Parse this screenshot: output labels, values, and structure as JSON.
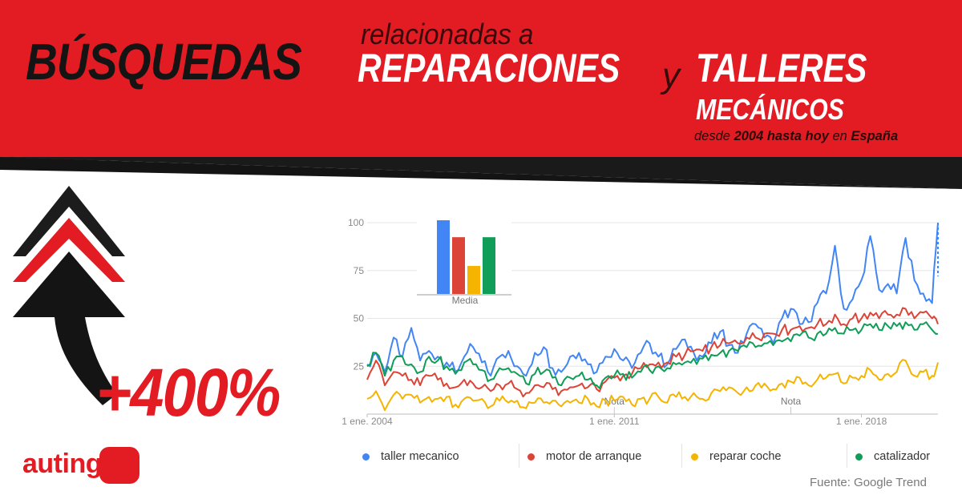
{
  "title": {
    "main": "BÚSQUEDAS",
    "relacionadas": "relacionadas a",
    "reparaciones": "REPARACIONES",
    "y": "y",
    "talleres": "TALLERES",
    "mecanicos": "MECÁNICOS",
    "subtitle_desde": "desde",
    "subtitle_years": "2004 hasta hoy",
    "subtitle_en": "en",
    "subtitle_country": "España"
  },
  "headline_percent": "+400%",
  "brand": {
    "logo_text": "autingo",
    "primary_color": "#e31b23"
  },
  "source": "Fuente: Google Trend",
  "chart_data": {
    "type": "line",
    "x_range": [
      "2004-01",
      "2020-03"
    ],
    "x_tick_labels": [
      "1 ene. 2004",
      "1 ene. 2011",
      "1 ene. 2018"
    ],
    "y_ticks": [
      25,
      50,
      75,
      100
    ],
    "ylim": [
      0,
      100
    ],
    "grid": true,
    "annotations": [
      {
        "label": "Nota",
        "x": "2011-01"
      },
      {
        "label": "Nota",
        "x": "2016-01"
      }
    ],
    "legend_position": "bottom",
    "series": [
      {
        "name": "taller mecanico",
        "color": "#4285f4",
        "points": [
          [
            "2004-01",
            26
          ],
          [
            "2004-04",
            32
          ],
          [
            "2004-07",
            22
          ],
          [
            "2004-10",
            40
          ],
          [
            "2005-01",
            30
          ],
          [
            "2005-04",
            45
          ],
          [
            "2005-07",
            28
          ],
          [
            "2005-10",
            33
          ],
          [
            "2006-01",
            30
          ],
          [
            "2006-04",
            27
          ],
          [
            "2006-07",
            22
          ],
          [
            "2006-10",
            30
          ],
          [
            "2007-01",
            35
          ],
          [
            "2007-04",
            27
          ],
          [
            "2007-07",
            20
          ],
          [
            "2007-10",
            30
          ],
          [
            "2008-01",
            33
          ],
          [
            "2008-04",
            25
          ],
          [
            "2008-07",
            20
          ],
          [
            "2008-10",
            32
          ],
          [
            "2009-01",
            35
          ],
          [
            "2009-04",
            24
          ],
          [
            "2009-07",
            22
          ],
          [
            "2009-10",
            30
          ],
          [
            "2010-01",
            32
          ],
          [
            "2010-04",
            26
          ],
          [
            "2010-07",
            22
          ],
          [
            "2010-10",
            30
          ],
          [
            "2011-01",
            34
          ],
          [
            "2011-04",
            28
          ],
          [
            "2011-07",
            24
          ],
          [
            "2011-10",
            32
          ],
          [
            "2012-01",
            37
          ],
          [
            "2012-04",
            30
          ],
          [
            "2012-07",
            26
          ],
          [
            "2012-10",
            34
          ],
          [
            "2013-01",
            39
          ],
          [
            "2013-04",
            32
          ],
          [
            "2013-07",
            30
          ],
          [
            "2013-10",
            37
          ],
          [
            "2014-01",
            43
          ],
          [
            "2014-04",
            36
          ],
          [
            "2014-07",
            32
          ],
          [
            "2014-10",
            42
          ],
          [
            "2015-01",
            47
          ],
          [
            "2015-04",
            40
          ],
          [
            "2015-07",
            37
          ],
          [
            "2015-10",
            50
          ],
          [
            "2016-01",
            55
          ],
          [
            "2016-04",
            47
          ],
          [
            "2016-07",
            48
          ],
          [
            "2016-10",
            58
          ],
          [
            "2017-01",
            63
          ],
          [
            "2017-04",
            88
          ],
          [
            "2017-07",
            55
          ],
          [
            "2017-10",
            60
          ],
          [
            "2018-01",
            70
          ],
          [
            "2018-04",
            93
          ],
          [
            "2018-07",
            65
          ],
          [
            "2018-10",
            68
          ],
          [
            "2019-01",
            63
          ],
          [
            "2019-04",
            92
          ],
          [
            "2019-07",
            70
          ],
          [
            "2019-10",
            63
          ],
          [
            "2020-01",
            58
          ],
          [
            "2020-03",
            100
          ]
        ]
      },
      {
        "name": "motor de arranque",
        "color": "#db4437",
        "points": [
          [
            "2004-01",
            18
          ],
          [
            "2004-04",
            28
          ],
          [
            "2004-07",
            15
          ],
          [
            "2004-10",
            22
          ],
          [
            "2005-01",
            20
          ],
          [
            "2005-04",
            18
          ],
          [
            "2005-07",
            15
          ],
          [
            "2005-10",
            20
          ],
          [
            "2006-01",
            18
          ],
          [
            "2006-04",
            16
          ],
          [
            "2006-07",
            14
          ],
          [
            "2006-10",
            18
          ],
          [
            "2007-01",
            16
          ],
          [
            "2007-04",
            14
          ],
          [
            "2007-07",
            12
          ],
          [
            "2007-10",
            15
          ],
          [
            "2008-01",
            16
          ],
          [
            "2008-04",
            13
          ],
          [
            "2008-07",
            11
          ],
          [
            "2008-10",
            15
          ],
          [
            "2009-01",
            14
          ],
          [
            "2009-04",
            13
          ],
          [
            "2009-07",
            12
          ],
          [
            "2009-10",
            14
          ],
          [
            "2010-01",
            15
          ],
          [
            "2010-04",
            14
          ],
          [
            "2010-07",
            13
          ],
          [
            "2010-10",
            17
          ],
          [
            "2011-01",
            19
          ],
          [
            "2011-04",
            20
          ],
          [
            "2011-07",
            21
          ],
          [
            "2011-10",
            24
          ],
          [
            "2012-01",
            26
          ],
          [
            "2012-04",
            27
          ],
          [
            "2012-07",
            27
          ],
          [
            "2012-10",
            30
          ],
          [
            "2013-01",
            31
          ],
          [
            "2013-04",
            33
          ],
          [
            "2013-07",
            33
          ],
          [
            "2013-10",
            35
          ],
          [
            "2014-01",
            36
          ],
          [
            "2014-04",
            37
          ],
          [
            "2014-07",
            37
          ],
          [
            "2014-10",
            40
          ],
          [
            "2015-01",
            40
          ],
          [
            "2015-04",
            42
          ],
          [
            "2015-07",
            42
          ],
          [
            "2015-10",
            44
          ],
          [
            "2016-01",
            44
          ],
          [
            "2016-04",
            46
          ],
          [
            "2016-07",
            45
          ],
          [
            "2016-10",
            47
          ],
          [
            "2017-01",
            47
          ],
          [
            "2017-04",
            52
          ],
          [
            "2017-07",
            47
          ],
          [
            "2017-10",
            50
          ],
          [
            "2018-01",
            50
          ],
          [
            "2018-04",
            53
          ],
          [
            "2018-07",
            50
          ],
          [
            "2018-10",
            52
          ],
          [
            "2019-01",
            52
          ],
          [
            "2019-04",
            55
          ],
          [
            "2019-07",
            50
          ],
          [
            "2019-10",
            53
          ],
          [
            "2020-01",
            50
          ],
          [
            "2020-03",
            47
          ]
        ]
      },
      {
        "name": "reparar coche",
        "color": "#f4b400",
        "points": [
          [
            "2004-01",
            8
          ],
          [
            "2004-04",
            12
          ],
          [
            "2004-07",
            2
          ],
          [
            "2004-10",
            10
          ],
          [
            "2005-01",
            8
          ],
          [
            "2005-04",
            10
          ],
          [
            "2005-07",
            6
          ],
          [
            "2005-10",
            9
          ],
          [
            "2006-01",
            8
          ],
          [
            "2006-04",
            9
          ],
          [
            "2006-07",
            5
          ],
          [
            "2006-10",
            8
          ],
          [
            "2007-01",
            7
          ],
          [
            "2007-04",
            8
          ],
          [
            "2007-07",
            4
          ],
          [
            "2007-10",
            7
          ],
          [
            "2008-01",
            6
          ],
          [
            "2008-04",
            7
          ],
          [
            "2008-07",
            3
          ],
          [
            "2008-10",
            6
          ],
          [
            "2009-01",
            6
          ],
          [
            "2009-04",
            7
          ],
          [
            "2009-07",
            4
          ],
          [
            "2009-10",
            6
          ],
          [
            "2010-01",
            6
          ],
          [
            "2010-04",
            8
          ],
          [
            "2010-07",
            4
          ],
          [
            "2010-10",
            7
          ],
          [
            "2011-01",
            7
          ],
          [
            "2011-04",
            9
          ],
          [
            "2011-07",
            5
          ],
          [
            "2011-10",
            8
          ],
          [
            "2012-01",
            8
          ],
          [
            "2012-04",
            9
          ],
          [
            "2012-07",
            6
          ],
          [
            "2012-10",
            9
          ],
          [
            "2013-01",
            9
          ],
          [
            "2013-04",
            11
          ],
          [
            "2013-07",
            8
          ],
          [
            "2013-10",
            11
          ],
          [
            "2014-01",
            12
          ],
          [
            "2014-04",
            14
          ],
          [
            "2014-07",
            11
          ],
          [
            "2014-10",
            14
          ],
          [
            "2015-01",
            15
          ],
          [
            "2015-04",
            16
          ],
          [
            "2015-07",
            13
          ],
          [
            "2015-10",
            16
          ],
          [
            "2016-01",
            17
          ],
          [
            "2016-04",
            19
          ],
          [
            "2016-07",
            15
          ],
          [
            "2016-10",
            18
          ],
          [
            "2017-01",
            19
          ],
          [
            "2017-04",
            21
          ],
          [
            "2017-07",
            16
          ],
          [
            "2017-10",
            19
          ],
          [
            "2018-01",
            20
          ],
          [
            "2018-04",
            23
          ],
          [
            "2018-07",
            18
          ],
          [
            "2018-10",
            21
          ],
          [
            "2019-01",
            22
          ],
          [
            "2019-04",
            28
          ],
          [
            "2019-07",
            20
          ],
          [
            "2019-10",
            22
          ],
          [
            "2020-01",
            20
          ],
          [
            "2020-03",
            27
          ]
        ]
      },
      {
        "name": "catalizador",
        "color": "#0f9d58",
        "points": [
          [
            "2004-01",
            25
          ],
          [
            "2004-04",
            32
          ],
          [
            "2004-07",
            20
          ],
          [
            "2004-10",
            28
          ],
          [
            "2005-01",
            30
          ],
          [
            "2005-04",
            26
          ],
          [
            "2005-07",
            22
          ],
          [
            "2005-10",
            30
          ],
          [
            "2006-01",
            28
          ],
          [
            "2006-04",
            25
          ],
          [
            "2006-07",
            21
          ],
          [
            "2006-10",
            27
          ],
          [
            "2007-01",
            26
          ],
          [
            "2007-04",
            23
          ],
          [
            "2007-07",
            18
          ],
          [
            "2007-10",
            24
          ],
          [
            "2008-01",
            24
          ],
          [
            "2008-04",
            21
          ],
          [
            "2008-07",
            16
          ],
          [
            "2008-10",
            21
          ],
          [
            "2009-01",
            22
          ],
          [
            "2009-04",
            19
          ],
          [
            "2009-07",
            15
          ],
          [
            "2009-10",
            19
          ],
          [
            "2010-01",
            20
          ],
          [
            "2010-04",
            18
          ],
          [
            "2010-07",
            15
          ],
          [
            "2010-10",
            19
          ],
          [
            "2011-01",
            20
          ],
          [
            "2011-04",
            21
          ],
          [
            "2011-07",
            19
          ],
          [
            "2011-10",
            22
          ],
          [
            "2012-01",
            23
          ],
          [
            "2012-04",
            25
          ],
          [
            "2012-07",
            24
          ],
          [
            "2012-10",
            26
          ],
          [
            "2013-01",
            27
          ],
          [
            "2013-04",
            29
          ],
          [
            "2013-07",
            29
          ],
          [
            "2013-10",
            31
          ],
          [
            "2014-01",
            32
          ],
          [
            "2014-04",
            33
          ],
          [
            "2014-07",
            33
          ],
          [
            "2014-10",
            35
          ],
          [
            "2015-01",
            35
          ],
          [
            "2015-04",
            37
          ],
          [
            "2015-07",
            36
          ],
          [
            "2015-10",
            38
          ],
          [
            "2016-01",
            38
          ],
          [
            "2016-04",
            41
          ],
          [
            "2016-07",
            40
          ],
          [
            "2016-10",
            42
          ],
          [
            "2017-01",
            42
          ],
          [
            "2017-04",
            45
          ],
          [
            "2017-07",
            42
          ],
          [
            "2017-10",
            44
          ],
          [
            "2018-01",
            44
          ],
          [
            "2018-04",
            47
          ],
          [
            "2018-07",
            44
          ],
          [
            "2018-10",
            46
          ],
          [
            "2019-01",
            46
          ],
          [
            "2019-04",
            48
          ],
          [
            "2019-07",
            44
          ],
          [
            "2019-10",
            47
          ],
          [
            "2020-01",
            44
          ],
          [
            "2020-03",
            42
          ]
        ]
      }
    ],
    "inset": {
      "type": "bar",
      "label": "Media",
      "values": [
        100,
        77,
        38,
        77
      ]
    }
  }
}
